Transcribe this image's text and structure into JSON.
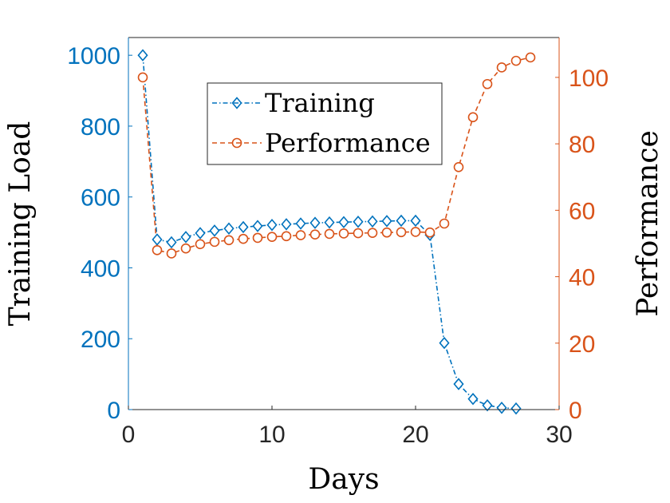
{
  "chart_data": {
    "type": "line",
    "xlabel": "Days",
    "ylabel_left": "Training Load",
    "ylabel_right": "Performance",
    "xlim": [
      0,
      30
    ],
    "ylim_left": [
      0,
      1050
    ],
    "ylim_right": [
      0,
      112
    ],
    "xticks": [
      "0",
      "10",
      "20",
      "30"
    ],
    "yticks_left": [
      "0",
      "200",
      "400",
      "600",
      "800",
      "1000"
    ],
    "yticks_right": [
      "0",
      "20",
      "40",
      "60",
      "80",
      "100"
    ],
    "grid": false,
    "legend_position": "upper-center",
    "colors": {
      "training": "#0072BD",
      "performance": "#D95319",
      "axis": "#262626"
    },
    "series": [
      {
        "name": "Training",
        "axis": "left",
        "marker": "diamond",
        "line_style": "dash-dot",
        "x": [
          1,
          2,
          3,
          4,
          5,
          6,
          7,
          8,
          9,
          10,
          11,
          12,
          13,
          14,
          15,
          16,
          17,
          18,
          19,
          20,
          21,
          22,
          23,
          24,
          25,
          26,
          27
        ],
        "values": [
          1000,
          480,
          472,
          487,
          498,
          505,
          511,
          515,
          518,
          521,
          523,
          525,
          527,
          528,
          529,
          530,
          531,
          532,
          533,
          533,
          493,
          188,
          72,
          30,
          12,
          5,
          3
        ]
      },
      {
        "name": "Performance",
        "axis": "right",
        "marker": "circle",
        "line_style": "dashed",
        "x": [
          1,
          2,
          3,
          4,
          5,
          6,
          7,
          8,
          9,
          10,
          11,
          12,
          13,
          14,
          15,
          16,
          17,
          18,
          19,
          20,
          21,
          22,
          23,
          24,
          25,
          26,
          27,
          28
        ],
        "values": [
          100,
          48,
          47,
          48.5,
          49.8,
          50.5,
          51,
          51.4,
          51.7,
          52,
          52.2,
          52.5,
          52.7,
          52.9,
          53,
          53.1,
          53.2,
          53.3,
          53.4,
          53.5,
          53.3,
          56,
          73,
          88,
          98,
          103,
          105,
          106
        ]
      }
    ]
  }
}
